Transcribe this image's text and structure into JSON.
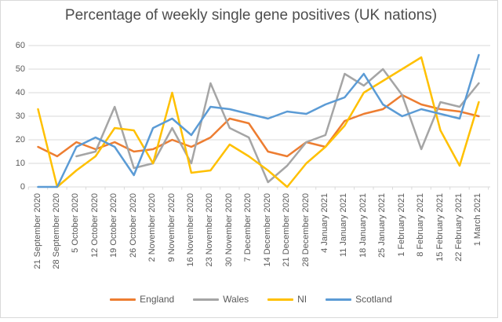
{
  "title": "Percentage of weekly single gene positives (UK nations)",
  "chart_data": {
    "type": "line",
    "title": "Percentage of weekly single gene positives (UK nations)",
    "categories": [
      "21 September 2020",
      "28 September 2020",
      "5 October 2020",
      "12 October 2020",
      "19 October 2020",
      "26 October 2020",
      "2 November 2020",
      "9 November 2020",
      "16 November 2020",
      "23 November 2020",
      "30 November 2020",
      "7 December 2020",
      "14 December 2020",
      "21 December 2020",
      "28 December 2020",
      "4 January 2021",
      "11 January 2021",
      "18 January 2021",
      "25 January 2021",
      "1 February 2021",
      "8 February 2021",
      "15 February 2021",
      "22 February 2021",
      "1 March 2021"
    ],
    "series": [
      {
        "name": "England",
        "color": "#ED7D31",
        "values": [
          17,
          13,
          19,
          16,
          19,
          15,
          16,
          20,
          17,
          21,
          29,
          27,
          15,
          13,
          19,
          17,
          28,
          31,
          33,
          39,
          35,
          33,
          32,
          30
        ]
      },
      {
        "name": "Wales",
        "color": "#A5A5A5",
        "values": [
          null,
          null,
          13,
          15,
          34,
          8,
          10,
          25,
          10,
          44,
          25,
          21,
          2,
          9,
          19,
          22,
          48,
          43,
          50,
          39,
          16,
          36,
          34,
          44
        ]
      },
      {
        "name": "NI",
        "color": "#FFC000",
        "values": [
          33,
          0,
          7,
          13,
          25,
          24,
          10,
          40,
          6,
          7,
          18,
          13,
          7,
          0,
          10,
          17,
          26,
          40,
          45,
          50,
          55,
          24,
          9,
          36
        ]
      },
      {
        "name": "Scotland",
        "color": "#5B9BD5",
        "values": [
          0,
          0,
          17,
          21,
          17,
          5,
          25,
          29,
          22,
          34,
          33,
          31,
          29,
          32,
          31,
          35,
          38,
          48,
          35,
          30,
          33,
          31,
          29,
          56
        ]
      }
    ],
    "xlabel": "",
    "ylabel": "",
    "ylim": [
      0,
      60
    ],
    "yticks": [
      0,
      10,
      20,
      30,
      40,
      50,
      60
    ],
    "grid": true,
    "gridline_color": "#D9D9D9",
    "legend_position": "bottom",
    "text_color": "#595959",
    "title_color": "#4d4d4d"
  }
}
